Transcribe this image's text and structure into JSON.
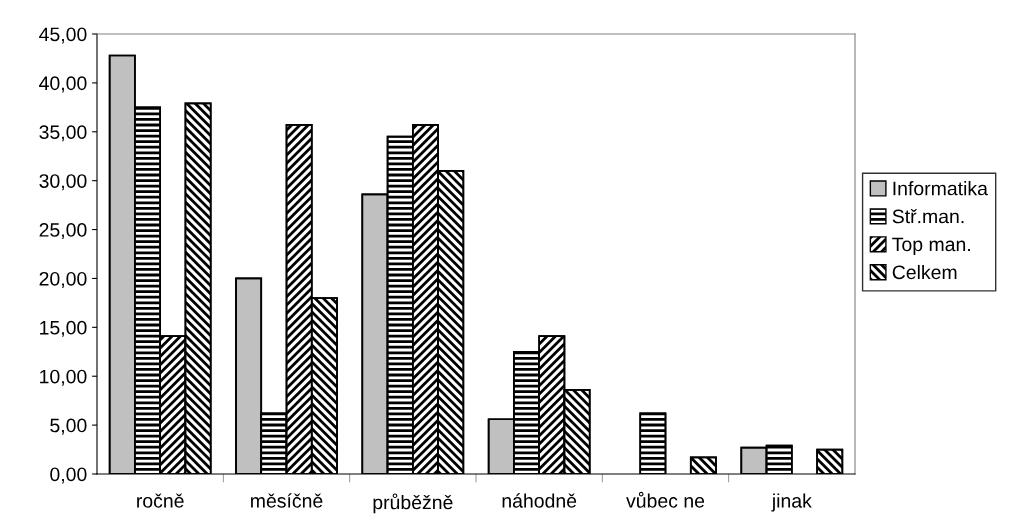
{
  "chart_data": {
    "type": "bar",
    "categories": [
      "ročně",
      "měsíčně",
      "průběžně",
      "náhodně",
      "vůbec ne",
      "jinak"
    ],
    "series": [
      {
        "name": "Informatika",
        "color": "#c0c0c0",
        "values": [
          42.8,
          20.0,
          28.6,
          5.6,
          null,
          2.7
        ]
      },
      {
        "name": "Stř.man.",
        "color": "#000000",
        "values": [
          37.5,
          6.2,
          34.5,
          12.5,
          6.2,
          2.9
        ]
      },
      {
        "name": "Top man.",
        "color": "#000000",
        "values": [
          14.1,
          35.7,
          35.7,
          14.1,
          null,
          null
        ]
      },
      {
        "name": "Celkem",
        "color": "#000000",
        "values": [
          37.9,
          18.0,
          31.0,
          8.6,
          1.7,
          2.5
        ]
      }
    ],
    "ylim": [
      0,
      45
    ],
    "yticks": [
      {
        "value": 0,
        "label": "0,00"
      },
      {
        "value": 5,
        "label": "5,00"
      },
      {
        "value": 10,
        "label": "10,00"
      },
      {
        "value": 15,
        "label": "15,00"
      },
      {
        "value": 20,
        "label": "20,00"
      },
      {
        "value": 25,
        "label": "25,00"
      },
      {
        "value": 30,
        "label": "30,00"
      },
      {
        "value": 35,
        "label": "35,00"
      },
      {
        "value": 40,
        "label": "40,00"
      },
      {
        "value": 45,
        "label": "45,00"
      }
    ],
    "grid": false,
    "legend": "right"
  }
}
